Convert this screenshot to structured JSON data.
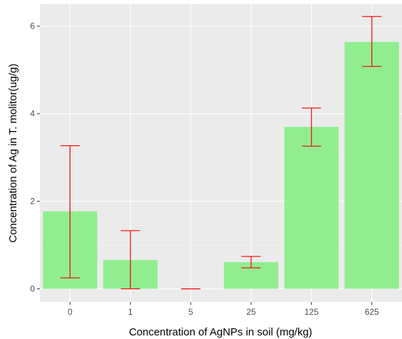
{
  "chart_data": {
    "type": "bar",
    "categories": [
      "0",
      "1",
      "5",
      "25",
      "125",
      "625"
    ],
    "values": [
      1.77,
      0.66,
      0.0,
      0.61,
      3.7,
      5.64
    ],
    "error_low": [
      0.25,
      0.0,
      0.0,
      0.48,
      3.26,
      5.08
    ],
    "error_high": [
      3.27,
      1.33,
      0.0,
      0.74,
      4.13,
      6.22
    ],
    "xlabel": "Concentration of AgNPs in soil (mg/kg)",
    "ylabel": "Concentration of Ag in T. molitor(ug/g)",
    "ylim": [
      -0.3,
      6.5
    ],
    "yticks": [
      0,
      2,
      4,
      6
    ],
    "grid": true,
    "colors": {
      "bar": "#90ee90",
      "error_bar": "#ff0000",
      "panel": "#ebebeb",
      "grid_major": "#ffffff"
    }
  }
}
